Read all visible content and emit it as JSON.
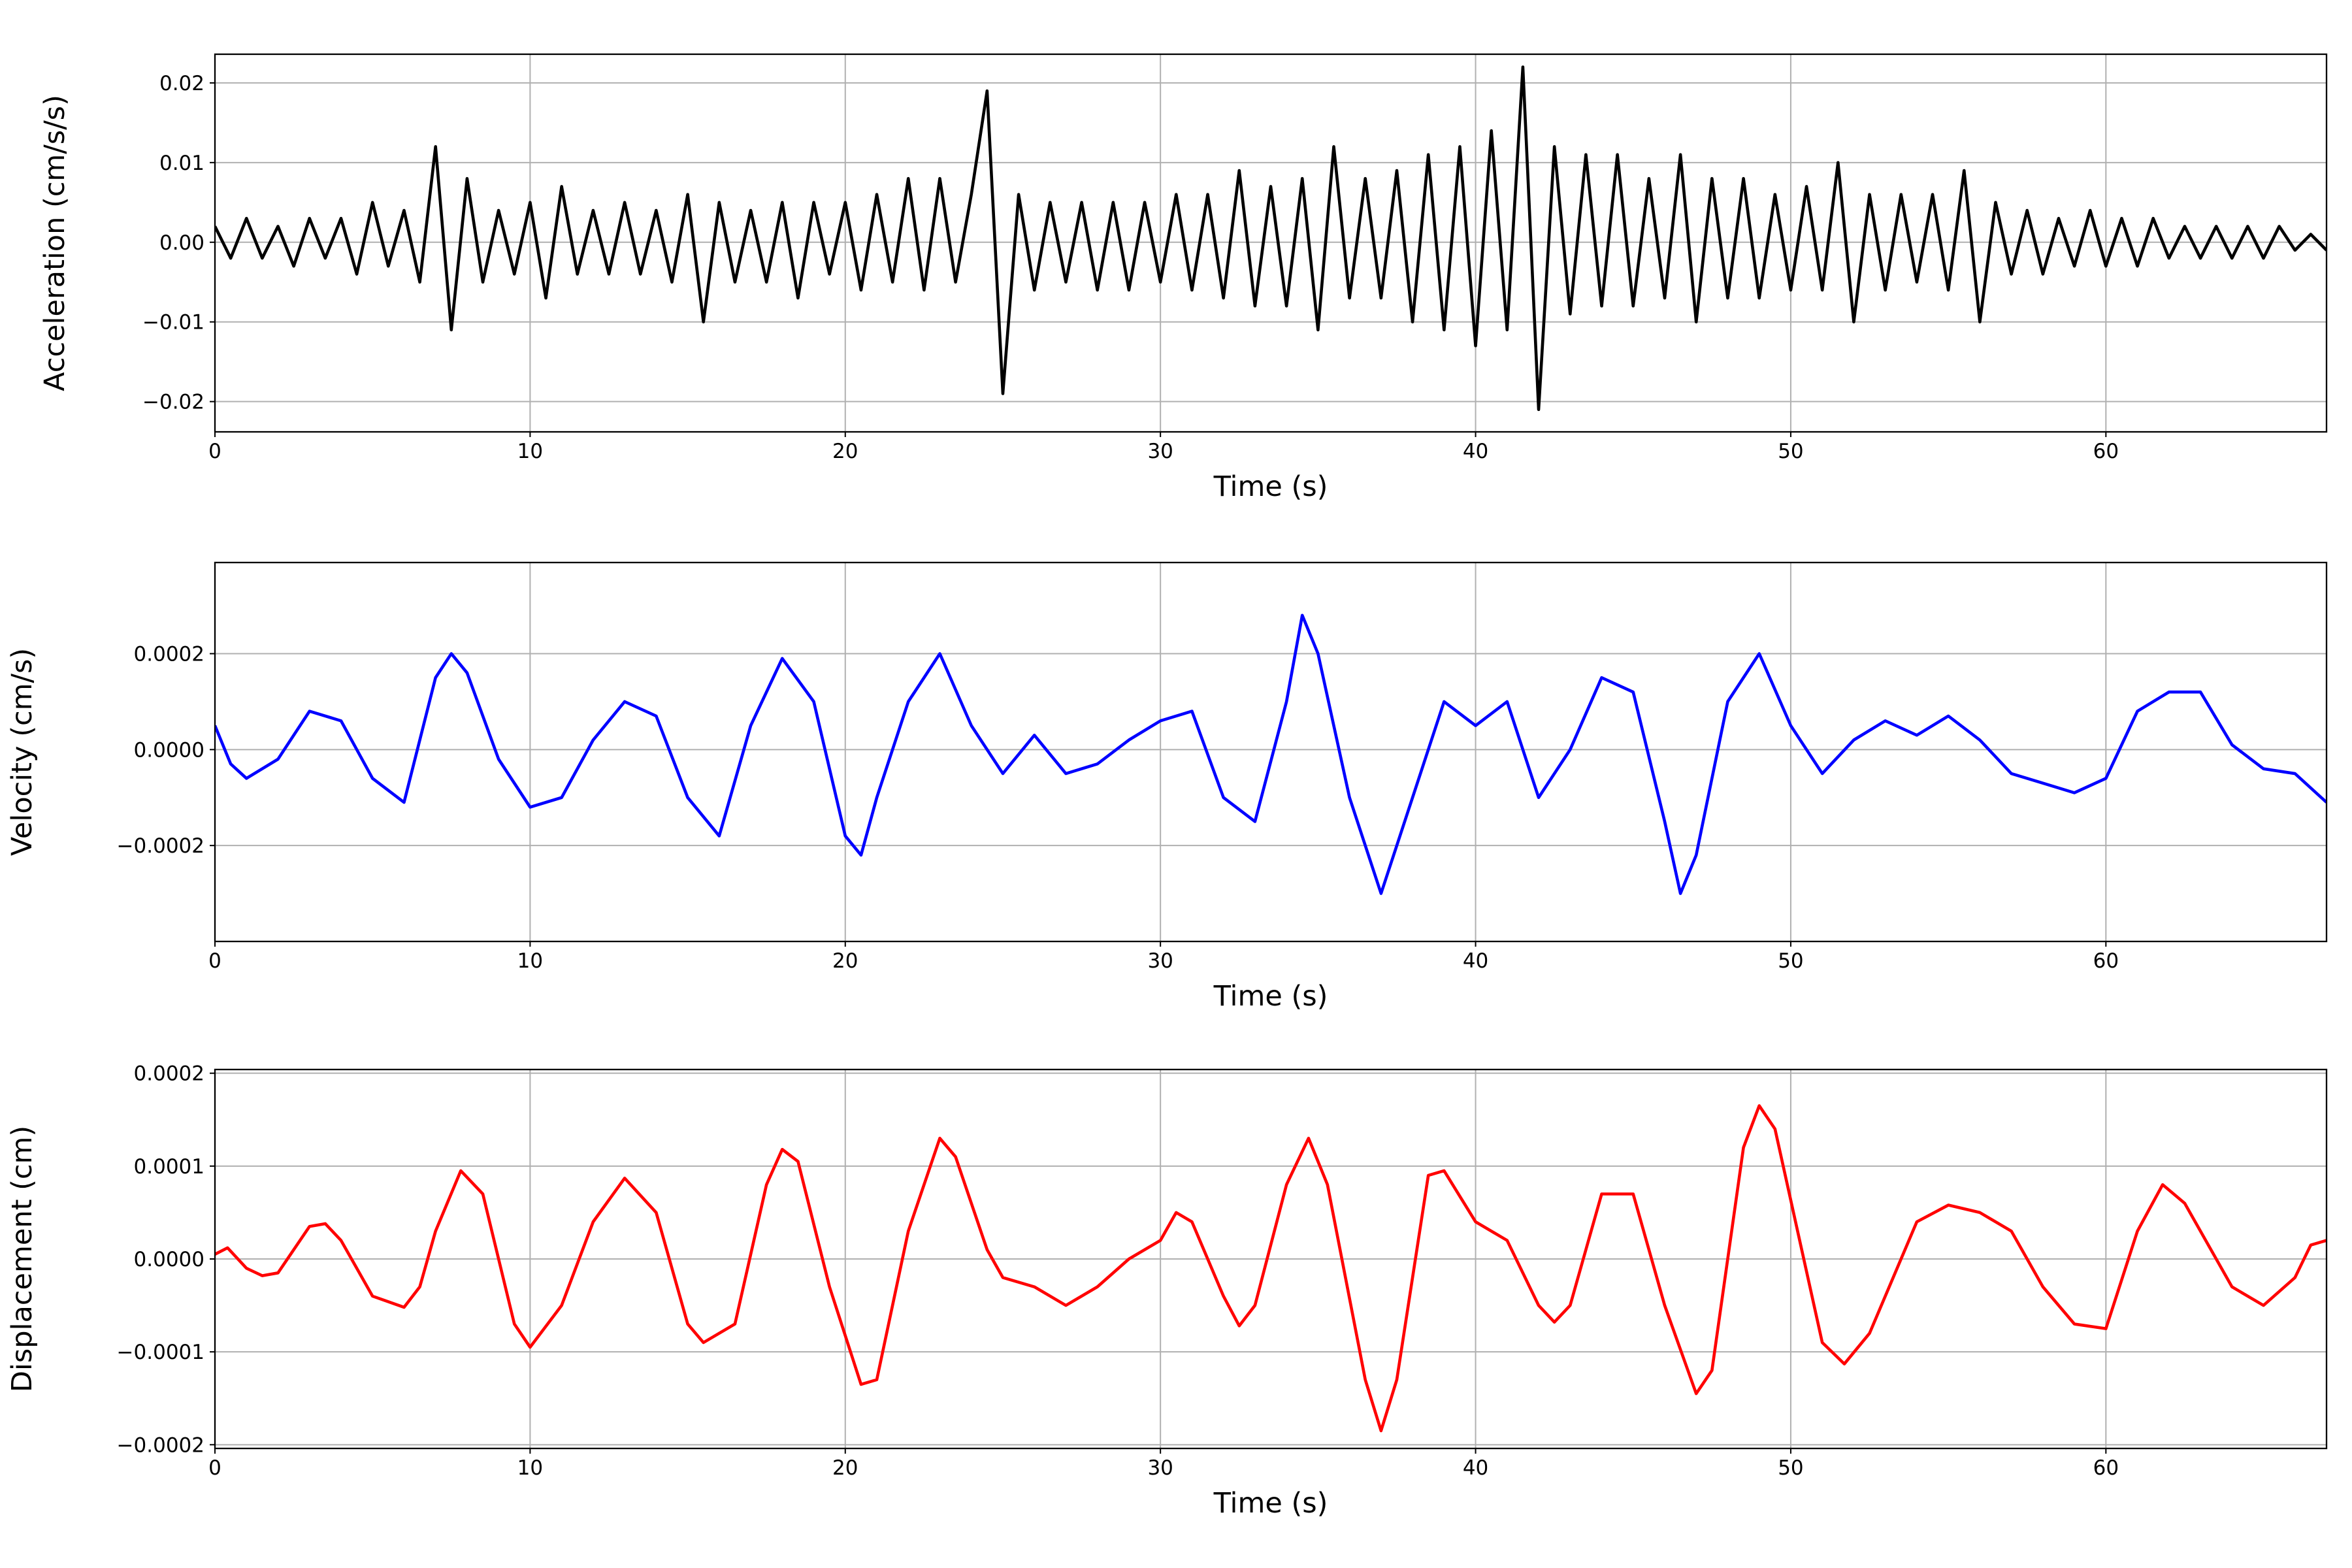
{
  "chart_data": [
    {
      "type": "line",
      "xlabel": "Time (s)",
      "ylabel": "Acceleration (cm/s/s)",
      "color": "#000000",
      "grid": true,
      "xlim": [
        0,
        67
      ],
      "xticks": [
        0,
        10,
        20,
        30,
        40,
        50,
        60
      ],
      "ylim": [
        -0.0238,
        0.0236
      ],
      "yticks": [
        {
          "value": -0.02,
          "label": "−0.02"
        },
        {
          "value": -0.01,
          "label": "−0.01"
        },
        {
          "value": 0,
          "label": "0.00"
        },
        0.01,
        0.02
      ],
      "x": [
        0,
        0.5,
        1,
        1.5,
        2,
        2.5,
        3,
        3.5,
        4,
        4.5,
        5,
        5.5,
        6,
        6.5,
        7,
        7.5,
        8,
        8.5,
        9,
        9.5,
        10,
        10.5,
        11,
        11.5,
        12,
        12.5,
        13,
        13.5,
        14,
        14.5,
        15,
        15.5,
        16,
        16.5,
        17,
        17.5,
        18,
        18.5,
        19,
        19.5,
        20,
        20.5,
        21,
        21.5,
        22,
        22.5,
        23,
        23.5,
        24,
        24.5,
        25,
        25.5,
        26,
        26.5,
        27,
        27.5,
        28,
        28.5,
        29,
        29.5,
        30,
        30.5,
        31,
        31.5,
        32,
        32.5,
        33,
        33.5,
        34,
        34.5,
        35,
        35.5,
        36,
        36.5,
        37,
        37.5,
        38,
        38.5,
        39,
        39.5,
        40,
        40.5,
        41,
        41.5,
        42,
        42.5,
        43,
        43.5,
        44,
        44.5,
        45,
        45.5,
        46,
        46.5,
        47,
        47.5,
        48,
        48.5,
        49,
        49.5,
        50,
        50.5,
        51,
        51.5,
        52,
        52.5,
        53,
        53.5,
        54,
        54.5,
        55,
        55.5,
        56,
        56.5,
        57,
        57.5,
        58,
        58.5,
        59,
        59.5,
        60,
        60.5,
        61,
        61.5,
        62,
        62.5,
        63,
        63.5,
        64,
        64.5,
        65,
        65.5,
        66,
        66.5,
        67
      ],
      "values": [
        0.002,
        -0.002,
        0.003,
        -0.002,
        0.002,
        -0.003,
        0.003,
        -0.002,
        0.003,
        -0.004,
        0.005,
        -0.003,
        0.004,
        -0.005,
        0.012,
        -0.011,
        0.008,
        -0.005,
        0.004,
        -0.004,
        0.005,
        -0.007,
        0.007,
        -0.004,
        0.004,
        -0.004,
        0.005,
        -0.004,
        0.004,
        -0.005,
        0.006,
        -0.01,
        0.005,
        -0.005,
        0.004,
        -0.005,
        0.005,
        -0.007,
        0.005,
        -0.004,
        0.005,
        -0.006,
        0.006,
        -0.005,
        0.008,
        -0.006,
        0.008,
        -0.005,
        0.006,
        0.019,
        -0.019,
        0.006,
        -0.006,
        0.005,
        -0.005,
        0.005,
        -0.006,
        0.005,
        -0.006,
        0.005,
        -0.005,
        0.006,
        -0.006,
        0.006,
        -0.007,
        0.009,
        -0.008,
        0.007,
        -0.008,
        0.008,
        -0.011,
        0.012,
        -0.007,
        0.008,
        -0.007,
        0.009,
        -0.01,
        0.011,
        -0.011,
        0.012,
        -0.013,
        0.014,
        -0.011,
        0.022,
        -0.021,
        0.012,
        -0.009,
        0.011,
        -0.008,
        0.011,
        -0.008,
        0.008,
        -0.007,
        0.011,
        -0.01,
        0.008,
        -0.007,
        0.008,
        -0.007,
        0.006,
        -0.006,
        0.007,
        -0.006,
        0.01,
        -0.01,
        0.006,
        -0.006,
        0.006,
        -0.005,
        0.006,
        -0.006,
        0.009,
        -0.01,
        0.005,
        -0.004,
        0.004,
        -0.004,
        0.003,
        -0.003,
        0.004,
        -0.003,
        0.003,
        -0.003,
        0.003,
        -0.002,
        0.002,
        -0.002,
        0.002,
        -0.002,
        0.002,
        -0.002,
        0.002,
        -0.001,
        0.001,
        -0.001
      ]
    },
    {
      "type": "line",
      "xlabel": "Time (s)",
      "ylabel": "Velocity (cm/s)",
      "color": "#0000ff",
      "grid": true,
      "xlim": [
        0,
        67
      ],
      "xticks": [
        0,
        10,
        20,
        30,
        40,
        50,
        60
      ],
      "ylim": [
        -0.0004,
        0.00039
      ],
      "yticks": [
        {
          "value": -0.0002,
          "label": "−0.0002"
        },
        {
          "value": 0,
          "label": "0.0000"
        },
        0.0002
      ],
      "x": [
        0,
        0.5,
        1,
        2,
        3,
        4,
        5,
        6,
        7,
        7.5,
        8,
        9,
        10,
        11,
        12,
        13,
        14,
        15,
        16,
        17,
        18,
        19,
        20,
        20.5,
        21,
        22,
        23,
        24,
        25,
        26,
        27,
        28,
        29,
        30,
        31,
        32,
        33,
        34,
        34.5,
        35,
        36,
        37,
        38,
        39,
        40,
        41,
        42,
        43,
        44,
        45,
        46,
        46.5,
        47,
        48,
        49,
        50,
        51,
        52,
        53,
        54,
        55,
        56,
        57,
        58,
        59,
        60,
        61,
        62,
        63,
        64,
        65,
        66,
        67
      ],
      "values": [
        5e-05,
        -3e-05,
        -6e-05,
        -2e-05,
        8e-05,
        6e-05,
        -6e-05,
        -0.00011,
        0.00015,
        0.0002,
        0.00016,
        -2e-05,
        -0.00012,
        -0.0001,
        2e-05,
        0.0001,
        7e-05,
        -0.0001,
        -0.00018,
        5e-05,
        0.00019,
        0.0001,
        -0.00018,
        -0.00022,
        -0.0001,
        0.0001,
        0.0002,
        5e-05,
        -5e-05,
        3e-05,
        -5e-05,
        -3e-05,
        2e-05,
        6e-05,
        8e-05,
        -0.0001,
        -0.00015,
        0.0001,
        0.00028,
        0.0002,
        -0.0001,
        -0.0003,
        -0.0001,
        0.0001,
        5e-05,
        0.0001,
        -0.0001,
        0,
        0.00015,
        0.00012,
        -0.00015,
        -0.0003,
        -0.00022,
        0.0001,
        0.0002,
        5e-05,
        -5e-05,
        2e-05,
        6e-05,
        3e-05,
        7e-05,
        2e-05,
        -5e-05,
        -7e-05,
        -9e-05,
        -6e-05,
        8e-05,
        0.00012,
        0.00012,
        1e-05,
        -4e-05,
        -5e-05,
        -0.00011
      ]
    },
    {
      "type": "line",
      "xlabel": "Time (s)",
      "ylabel": "Displacement (cm)",
      "color": "#ff0000",
      "grid": true,
      "xlim": [
        0,
        67
      ],
      "xticks": [
        0,
        10,
        20,
        30,
        40,
        50,
        60
      ],
      "ylim": [
        -0.000204,
        0.000204
      ],
      "yticks": [
        {
          "value": -0.0002,
          "label": "−0.0002"
        },
        {
          "value": -0.0001,
          "label": "−0.0001"
        },
        {
          "value": 0,
          "label": "0.0000"
        },
        0.0001,
        0.0002
      ],
      "x": [
        0,
        0.4,
        1,
        1.5,
        2,
        3,
        3.5,
        4,
        5,
        6,
        6.5,
        7,
        7.8,
        8.5,
        9.5,
        10,
        11,
        12,
        13,
        14,
        15,
        15.5,
        16.5,
        17.5,
        18,
        18.5,
        19.5,
        20.5,
        21,
        22,
        23,
        23.5,
        24.5,
        25,
        26,
        27,
        28,
        29,
        30,
        30.5,
        31,
        32,
        32.5,
        33,
        34,
        34.7,
        35.3,
        36.5,
        37,
        37.5,
        38.5,
        39,
        40,
        41,
        42,
        42.5,
        43,
        44,
        45,
        46,
        47,
        47.5,
        48.5,
        49,
        49.5,
        51,
        51.7,
        52.5,
        54,
        55,
        56,
        57,
        58,
        59,
        60,
        61,
        61.8,
        62.5,
        64,
        65,
        66,
        66.5,
        67
      ],
      "values": [
        5e-06,
        1.2e-05,
        -1e-05,
        -1.8e-05,
        -1.5e-05,
        3.5e-05,
        3.8e-05,
        2e-05,
        -4e-05,
        -5.2e-05,
        -3e-05,
        3e-05,
        9.5e-05,
        7e-05,
        -7e-05,
        -9.5e-05,
        -5e-05,
        4e-05,
        8.7e-05,
        5e-05,
        -7e-05,
        -9e-05,
        -7e-05,
        8e-05,
        0.000118,
        0.000105,
        -3e-05,
        -0.000135,
        -0.00013,
        3e-05,
        0.00013,
        0.00011,
        1e-05,
        -2e-05,
        -3e-05,
        -5e-05,
        -3e-05,
        0,
        2e-05,
        5e-05,
        4e-05,
        -4e-05,
        -7.2e-05,
        -5e-05,
        8e-05,
        0.00013,
        8e-05,
        -0.00013,
        -0.000185,
        -0.00013,
        9e-05,
        9.5e-05,
        4e-05,
        2e-05,
        -5e-05,
        -6.8e-05,
        -5e-05,
        7e-05,
        7e-05,
        -5e-05,
        -0.000145,
        -0.00012,
        0.00012,
        0.000165,
        0.00014,
        -9e-05,
        -0.000113,
        -8e-05,
        4e-05,
        5.8e-05,
        5e-05,
        3e-05,
        -3e-05,
        -7e-05,
        -7.5e-05,
        3e-05,
        8e-05,
        6e-05,
        -3e-05,
        -5e-05,
        -2e-05,
        1.5e-05,
        2e-05
      ]
    }
  ]
}
